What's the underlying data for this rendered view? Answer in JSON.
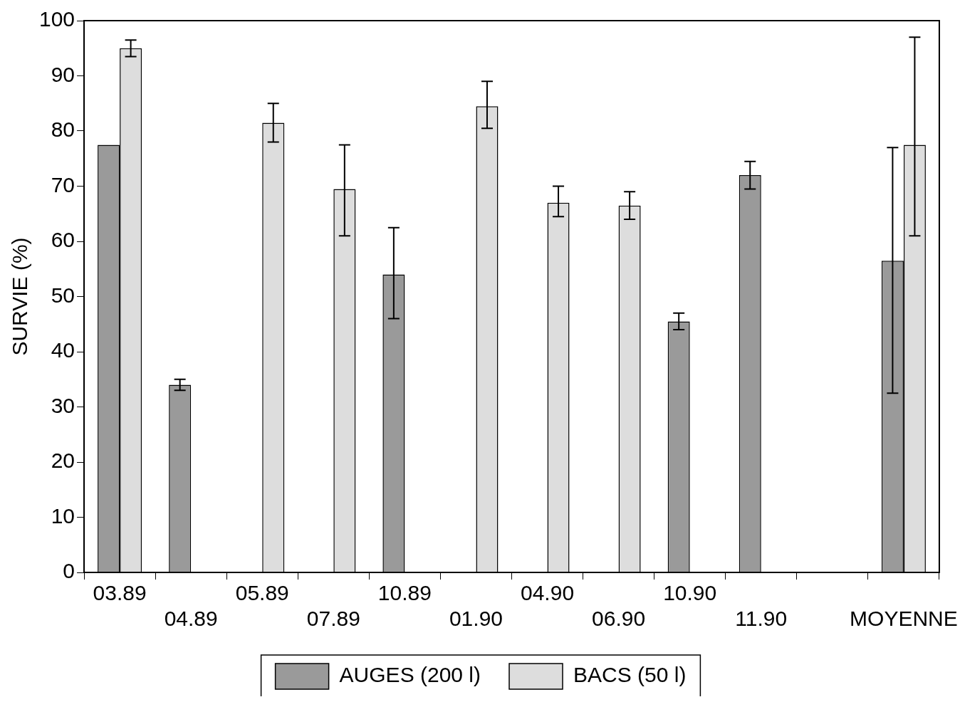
{
  "chart_data": {
    "type": "bar",
    "ylabel": "SURVIE (%)",
    "categories": [
      "03.89",
      "04.89",
      "05.89",
      "07.89",
      "10.89",
      "01.90",
      "04.90",
      "06.90",
      "10.90",
      "11.90",
      null,
      "MOYENNE"
    ],
    "series": [
      {
        "name": "AUGES (200 l)",
        "color": "#9a9a9a",
        "values": [
          77.5,
          34,
          null,
          null,
          54,
          null,
          null,
          null,
          45.5,
          72,
          null,
          56.5
        ],
        "errors": [
          null,
          [
            33,
            35
          ],
          null,
          null,
          [
            46,
            62.5
          ],
          null,
          null,
          null,
          [
            44,
            47
          ],
          [
            69.5,
            74.5
          ],
          null,
          [
            32.5,
            77
          ]
        ]
      },
      {
        "name": "BACS (50 l)",
        "color": "#dddddd",
        "values": [
          95,
          null,
          81.5,
          69.5,
          null,
          84.5,
          67,
          66.5,
          null,
          null,
          null,
          77.5
        ],
        "errors": [
          [
            93.5,
            96.5
          ],
          null,
          [
            78,
            85
          ],
          [
            61,
            77.5
          ],
          null,
          [
            80.5,
            89
          ],
          [
            64.5,
            70
          ],
          [
            64,
            69
          ],
          null,
          null,
          null,
          [
            61,
            97
          ]
        ]
      }
    ],
    "ylim": [
      0,
      100
    ],
    "yticks": [
      0,
      10,
      20,
      30,
      40,
      50,
      60,
      70,
      80,
      90,
      100
    ],
    "grid": false,
    "legend": "bottom"
  }
}
